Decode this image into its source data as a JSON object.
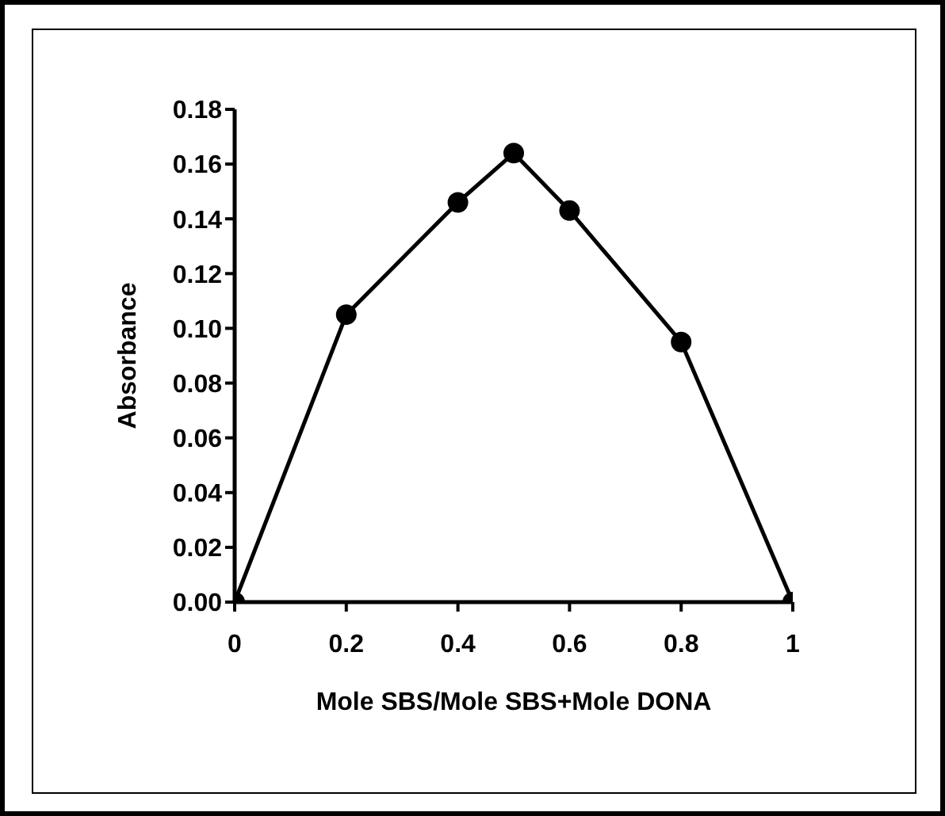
{
  "chart_data": {
    "type": "line",
    "xlabel": "Mole SBS/Mole SBS+Mole DONA",
    "ylabel": "Absorbance",
    "x": [
      0,
      0.2,
      0.4,
      0.5,
      0.6,
      0.8,
      1
    ],
    "series": [
      {
        "color": "#000000",
        "values": [
          0,
          0.105,
          0.146,
          0.164,
          0.143,
          0.095,
          0
        ]
      }
    ],
    "xlim": [
      0,
      1
    ],
    "xticks": [
      0,
      0.2,
      0.4,
      0.6,
      0.8,
      1
    ],
    "ylim": [
      0,
      0.18
    ],
    "yticks": [
      {
        "value": 0,
        "label": "0.00"
      },
      {
        "value": 0.02,
        "label": "0.02"
      },
      {
        "value": 0.04,
        "label": "0.04"
      },
      {
        "value": 0.06,
        "label": "0.06"
      },
      {
        "value": 0.08,
        "label": "0.08"
      },
      {
        "value": 0.1,
        "label": "0.10"
      },
      {
        "value": 0.12,
        "label": "0.12"
      },
      {
        "value": 0.14,
        "label": "0.14"
      },
      {
        "value": 0.16,
        "label": "0.16"
      },
      {
        "value": 0.18,
        "label": "0.18"
      }
    ],
    "grid": false,
    "legend": false,
    "marker": "circle",
    "line_style": "solid"
  }
}
